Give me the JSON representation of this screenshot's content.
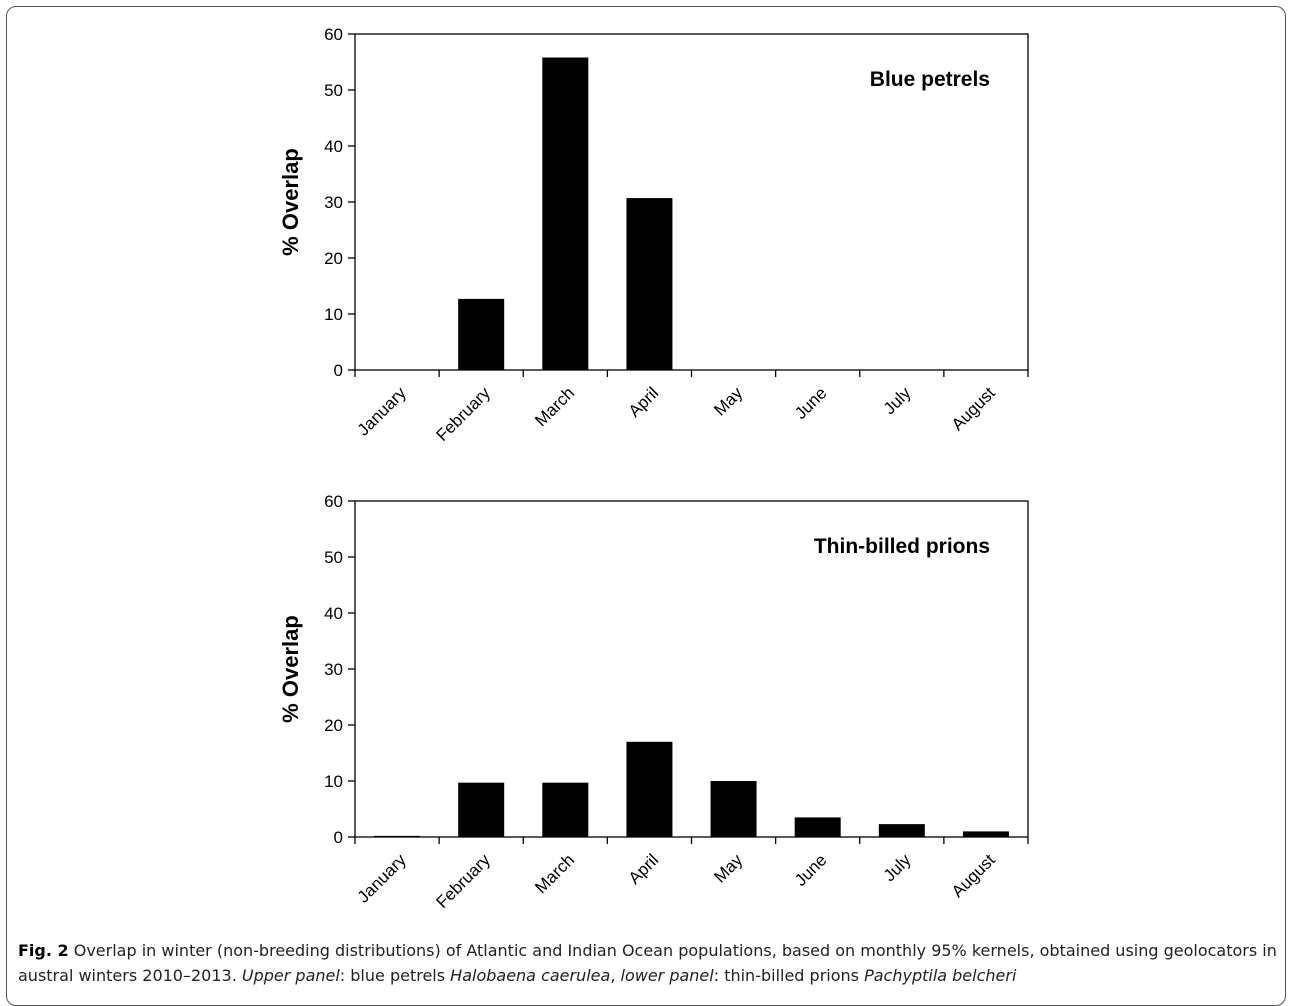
{
  "chart_data": [
    {
      "type": "bar",
      "title": "Blue petrels",
      "ylabel": "% Overlap",
      "xlabel": "",
      "categories": [
        "January",
        "February",
        "March",
        "April",
        "May",
        "June",
        "July",
        "August"
      ],
      "values": [
        0,
        12.7,
        55.8,
        30.7,
        0,
        0,
        0,
        0
      ],
      "ylim": [
        0,
        60
      ],
      "yticks": [
        0,
        10,
        20,
        30,
        40,
        50,
        60
      ],
      "grid": false,
      "bar_color": "#000000"
    },
    {
      "type": "bar",
      "title": "Thin-billed prions",
      "ylabel": "% Overlap",
      "xlabel": "",
      "categories": [
        "January",
        "February",
        "March",
        "April",
        "May",
        "June",
        "July",
        "August"
      ],
      "values": [
        0.2,
        9.7,
        9.7,
        17.0,
        10.0,
        3.5,
        2.3,
        1.0
      ],
      "ylim": [
        0,
        60
      ],
      "yticks": [
        0,
        10,
        20,
        30,
        40,
        50,
        60
      ],
      "grid": false,
      "bar_color": "#000000"
    }
  ],
  "caption": {
    "fig_label": "Fig. 2",
    "text_1": " Overlap in winter (non-breeding distributions) of Atlantic and Indian Ocean populations, based on monthly 95% kernels, obtained using geolocators in austral winters 2010–2013. ",
    "upper_label": "Upper panel",
    "text_2": ": blue petrels ",
    "species_1": "Halobaena caerulea",
    "text_3": ", ",
    "lower_label": "lower panel",
    "text_4": ": thin-billed prions ",
    "species_2": "Pachyptila belcheri"
  }
}
